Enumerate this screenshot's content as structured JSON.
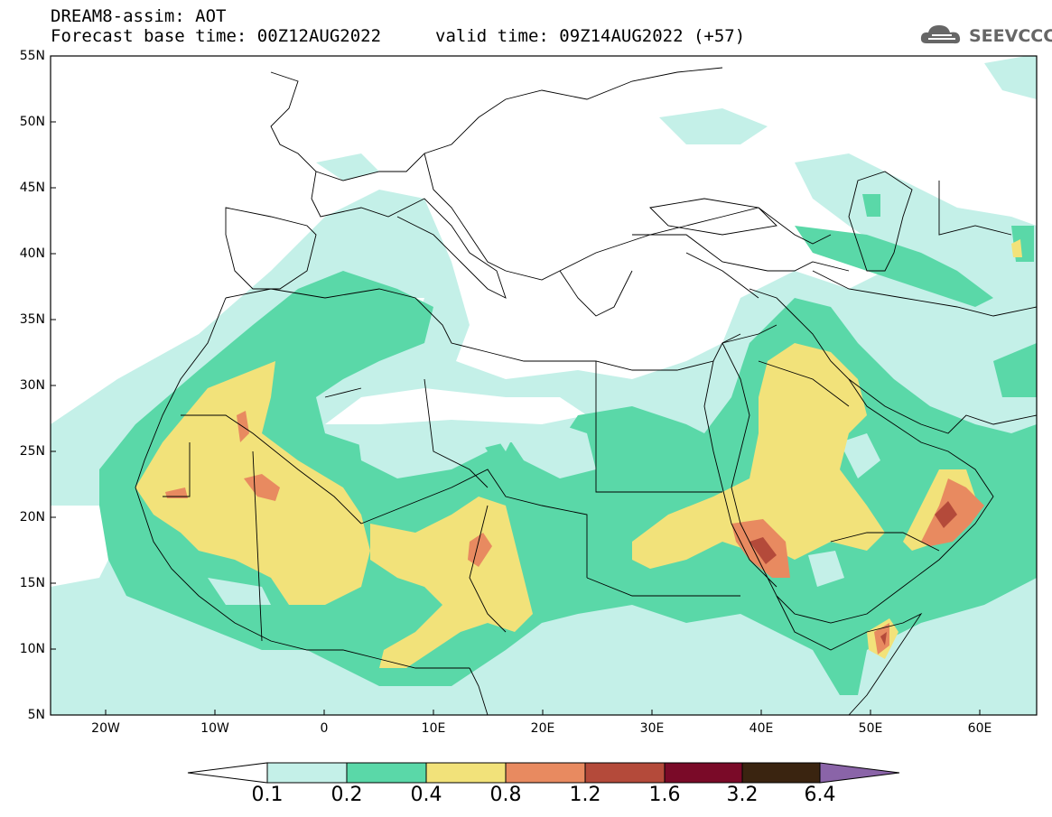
{
  "header": {
    "line1": "DREAM8-assim: AOT",
    "line2": "Forecast base time: 00Z12AUG2022",
    "line2b": "valid time: 09Z14AUG2022 (+57)",
    "logo_text": "SEEVCCC",
    "logo_icon": "cloud-logo-icon"
  },
  "map": {
    "lat_labels": [
      "55N",
      "50N",
      "45N",
      "40N",
      "35N",
      "30N",
      "25N",
      "20N",
      "15N",
      "10N",
      "5N"
    ],
    "lon_labels": [
      "20W",
      "10W",
      "0",
      "10E",
      "20E",
      "30E",
      "40E",
      "50E",
      "60E"
    ],
    "extent": {
      "lon_min": -25,
      "lon_max": 65,
      "lat_min": 5,
      "lat_max": 55
    }
  },
  "colorbar": {
    "labels": [
      "0.1",
      "0.2",
      "0.4",
      "0.8",
      "1.2",
      "1.6",
      "3.2",
      "6.4"
    ],
    "colors": [
      "#c4f0e8",
      "#5ad8a8",
      "#f2e27a",
      "#e88a60",
      "#b44a3a",
      "#7a0a28",
      "#3a2410",
      "#8a64a8"
    ]
  }
}
